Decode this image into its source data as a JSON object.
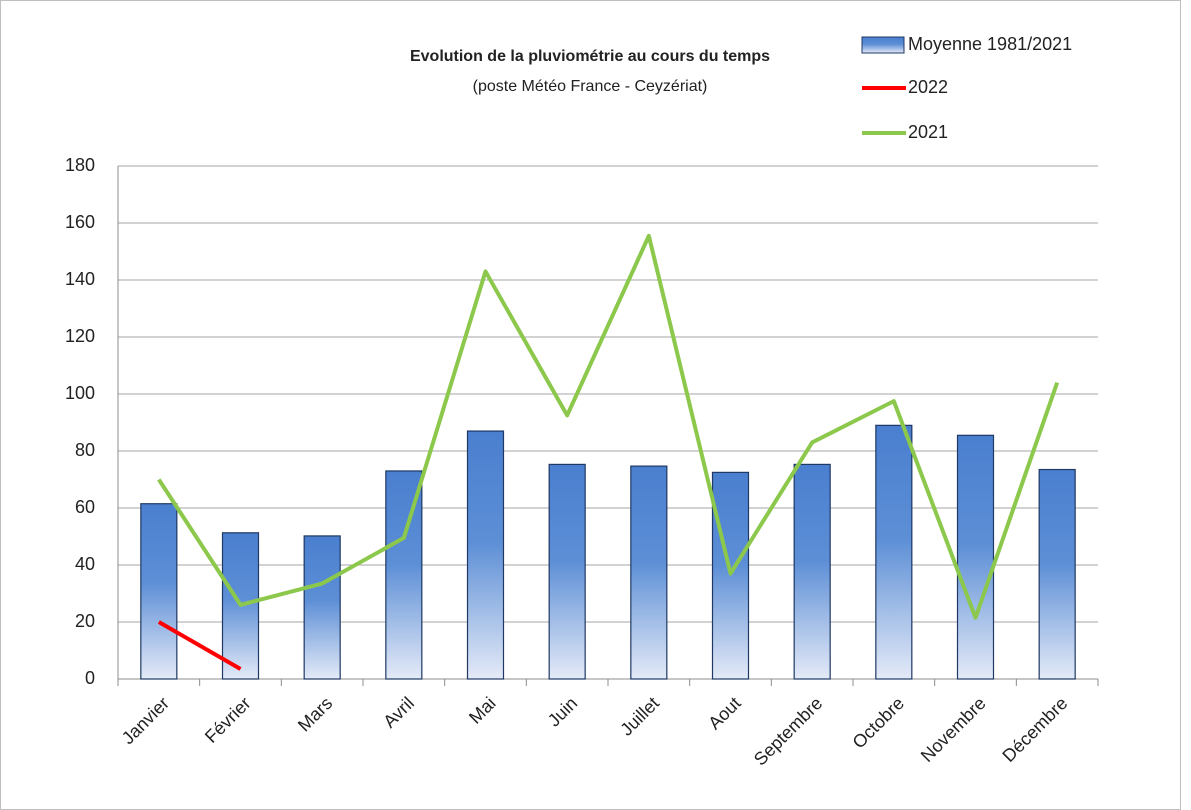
{
  "chart_data": {
    "type": "bar",
    "title": "Evolution de la pluviométrie au cours du temps",
    "subtitle": "(poste Météo France - Ceyzériat)",
    "categories": [
      "Janvier",
      "Février",
      "Mars",
      "Avril",
      "Mai",
      "Juin",
      "Juillet",
      "Aout",
      "Septembre",
      "Octobre",
      "Novembre",
      "Décembre"
    ],
    "series": [
      {
        "name": "Moyenne 1981/2021",
        "type": "bar",
        "color": "#4a7fcf",
        "values": [
          61.5,
          51.3,
          50.2,
          73,
          87,
          75.3,
          74.7,
          72.5,
          75.3,
          89,
          85.5,
          73.5
        ]
      },
      {
        "name": "2022",
        "type": "line",
        "color": "#ff0000",
        "values": [
          20,
          3.5,
          null,
          null,
          null,
          null,
          null,
          null,
          null,
          null,
          null,
          null
        ]
      },
      {
        "name": "2021",
        "type": "line",
        "color": "#8cc84b",
        "values": [
          70,
          26,
          33.5,
          49.5,
          143,
          92.5,
          155.5,
          37,
          83,
          97.5,
          21.5,
          104
        ]
      }
    ],
    "ylim": [
      0,
      180
    ],
    "yticks": [
      0,
      20,
      40,
      60,
      80,
      100,
      120,
      140,
      160,
      180
    ],
    "grid": true,
    "legend": "top-right"
  }
}
